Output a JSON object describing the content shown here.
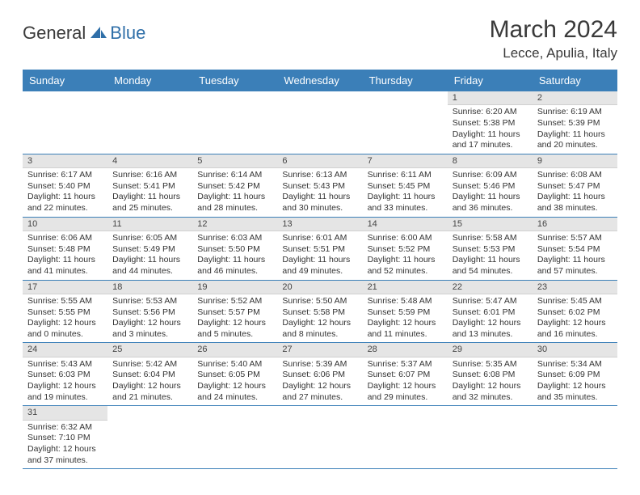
{
  "brand": {
    "main": "General",
    "sub": "Blue"
  },
  "title": "March 2024",
  "location": "Lecce, Apulia, Italy",
  "colors": {
    "header_bg": "#3b7fb8",
    "header_text": "#ffffff",
    "daynum_bg": "#e5e5e5",
    "row_border": "#3b7fb8",
    "logo_sub": "#2f6fa8",
    "text": "#333333"
  },
  "daynames": [
    "Sunday",
    "Monday",
    "Tuesday",
    "Wednesday",
    "Thursday",
    "Friday",
    "Saturday"
  ],
  "weeks": [
    [
      null,
      null,
      null,
      null,
      null,
      {
        "n": "1",
        "sr": "6:20 AM",
        "ss": "5:38 PM",
        "dl": "11 hours and 17 minutes."
      },
      {
        "n": "2",
        "sr": "6:19 AM",
        "ss": "5:39 PM",
        "dl": "11 hours and 20 minutes."
      }
    ],
    [
      {
        "n": "3",
        "sr": "6:17 AM",
        "ss": "5:40 PM",
        "dl": "11 hours and 22 minutes."
      },
      {
        "n": "4",
        "sr": "6:16 AM",
        "ss": "5:41 PM",
        "dl": "11 hours and 25 minutes."
      },
      {
        "n": "5",
        "sr": "6:14 AM",
        "ss": "5:42 PM",
        "dl": "11 hours and 28 minutes."
      },
      {
        "n": "6",
        "sr": "6:13 AM",
        "ss": "5:43 PM",
        "dl": "11 hours and 30 minutes."
      },
      {
        "n": "7",
        "sr": "6:11 AM",
        "ss": "5:45 PM",
        "dl": "11 hours and 33 minutes."
      },
      {
        "n": "8",
        "sr": "6:09 AM",
        "ss": "5:46 PM",
        "dl": "11 hours and 36 minutes."
      },
      {
        "n": "9",
        "sr": "6:08 AM",
        "ss": "5:47 PM",
        "dl": "11 hours and 38 minutes."
      }
    ],
    [
      {
        "n": "10",
        "sr": "6:06 AM",
        "ss": "5:48 PM",
        "dl": "11 hours and 41 minutes."
      },
      {
        "n": "11",
        "sr": "6:05 AM",
        "ss": "5:49 PM",
        "dl": "11 hours and 44 minutes."
      },
      {
        "n": "12",
        "sr": "6:03 AM",
        "ss": "5:50 PM",
        "dl": "11 hours and 46 minutes."
      },
      {
        "n": "13",
        "sr": "6:01 AM",
        "ss": "5:51 PM",
        "dl": "11 hours and 49 minutes."
      },
      {
        "n": "14",
        "sr": "6:00 AM",
        "ss": "5:52 PM",
        "dl": "11 hours and 52 minutes."
      },
      {
        "n": "15",
        "sr": "5:58 AM",
        "ss": "5:53 PM",
        "dl": "11 hours and 54 minutes."
      },
      {
        "n": "16",
        "sr": "5:57 AM",
        "ss": "5:54 PM",
        "dl": "11 hours and 57 minutes."
      }
    ],
    [
      {
        "n": "17",
        "sr": "5:55 AM",
        "ss": "5:55 PM",
        "dl": "12 hours and 0 minutes."
      },
      {
        "n": "18",
        "sr": "5:53 AM",
        "ss": "5:56 PM",
        "dl": "12 hours and 3 minutes."
      },
      {
        "n": "19",
        "sr": "5:52 AM",
        "ss": "5:57 PM",
        "dl": "12 hours and 5 minutes."
      },
      {
        "n": "20",
        "sr": "5:50 AM",
        "ss": "5:58 PM",
        "dl": "12 hours and 8 minutes."
      },
      {
        "n": "21",
        "sr": "5:48 AM",
        "ss": "5:59 PM",
        "dl": "12 hours and 11 minutes."
      },
      {
        "n": "22",
        "sr": "5:47 AM",
        "ss": "6:01 PM",
        "dl": "12 hours and 13 minutes."
      },
      {
        "n": "23",
        "sr": "5:45 AM",
        "ss": "6:02 PM",
        "dl": "12 hours and 16 minutes."
      }
    ],
    [
      {
        "n": "24",
        "sr": "5:43 AM",
        "ss": "6:03 PM",
        "dl": "12 hours and 19 minutes."
      },
      {
        "n": "25",
        "sr": "5:42 AM",
        "ss": "6:04 PM",
        "dl": "12 hours and 21 minutes."
      },
      {
        "n": "26",
        "sr": "5:40 AM",
        "ss": "6:05 PM",
        "dl": "12 hours and 24 minutes."
      },
      {
        "n": "27",
        "sr": "5:39 AM",
        "ss": "6:06 PM",
        "dl": "12 hours and 27 minutes."
      },
      {
        "n": "28",
        "sr": "5:37 AM",
        "ss": "6:07 PM",
        "dl": "12 hours and 29 minutes."
      },
      {
        "n": "29",
        "sr": "5:35 AM",
        "ss": "6:08 PM",
        "dl": "12 hours and 32 minutes."
      },
      {
        "n": "30",
        "sr": "5:34 AM",
        "ss": "6:09 PM",
        "dl": "12 hours and 35 minutes."
      }
    ],
    [
      {
        "n": "31",
        "sr": "6:32 AM",
        "ss": "7:10 PM",
        "dl": "12 hours and 37 minutes."
      },
      null,
      null,
      null,
      null,
      null,
      null
    ]
  ],
  "labels": {
    "sunrise": "Sunrise:",
    "sunset": "Sunset:",
    "daylight": "Daylight:"
  }
}
